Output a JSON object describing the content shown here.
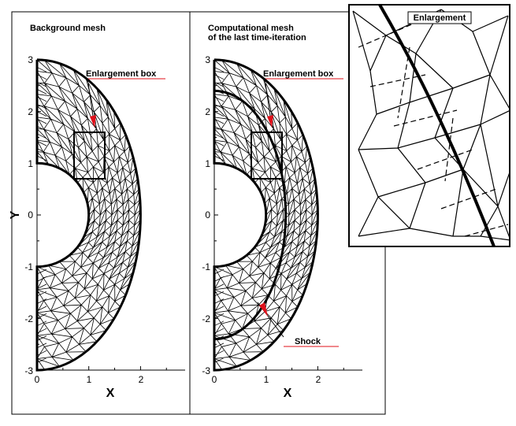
{
  "panels": {
    "left": {
      "title": "Background mesh",
      "annotation": "Enlargement box",
      "xlabel": "X",
      "ylabel": "Y",
      "xticks": [
        "0",
        "1",
        "2"
      ],
      "yticks": [
        "3",
        "2",
        "1",
        "0",
        "-1",
        "-2",
        "-3"
      ]
    },
    "middle": {
      "title_line1": "Computational mesh",
      "title_line2": "of the last time-iteration",
      "annotation": "Enlargement box",
      "shock_label": "Shock",
      "xlabel": "X",
      "xticks": [
        "0",
        "1",
        "2"
      ],
      "yticks": [
        "3",
        "2",
        "1",
        "0",
        "-1",
        "-2",
        "-3"
      ]
    },
    "inset": {
      "title": "Enlargement"
    }
  },
  "colors": {
    "mesh": "#000000",
    "arrow": "#e0101a",
    "leader": "#e0101a"
  },
  "domain": {
    "inner_radius": 1,
    "outer_radius": 2,
    "x_range": [
      0,
      2
    ],
    "y_range": [
      -3,
      3
    ]
  }
}
